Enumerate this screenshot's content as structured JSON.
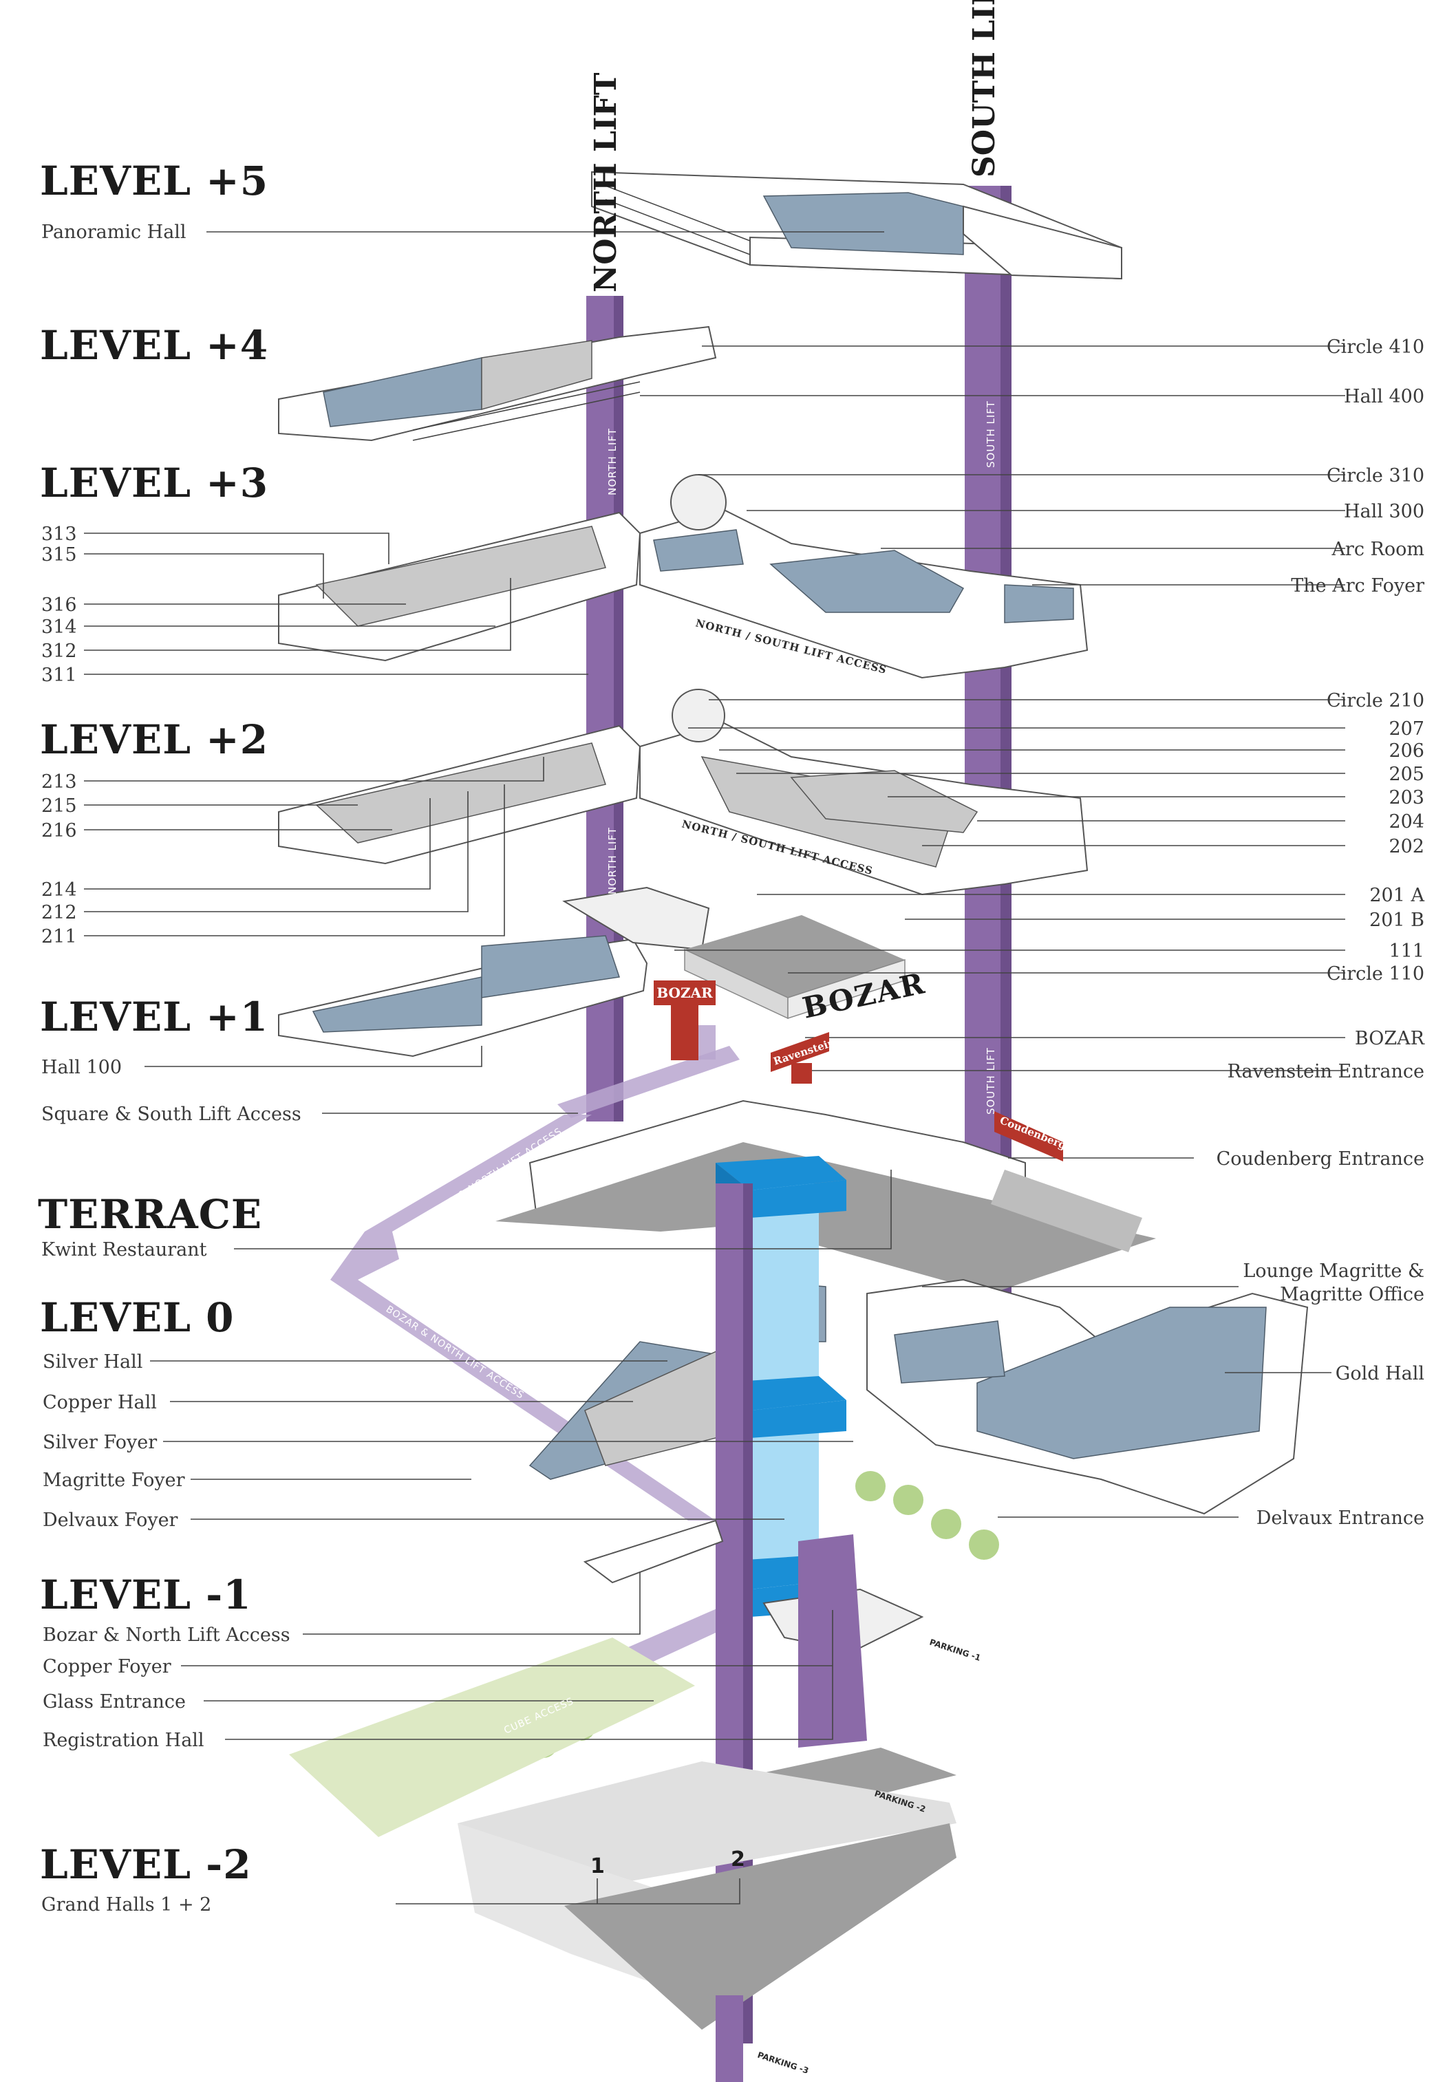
{
  "levels": {
    "l5": {
      "title": "LEVEL +5",
      "sub": "Panoramic Hall"
    },
    "l4": {
      "title": "LEVEL +4"
    },
    "l3": {
      "title": "LEVEL +3"
    },
    "l2": {
      "title": "LEVEL +2"
    },
    "l1": {
      "title": "LEVEL +1",
      "sub": "Hall 100"
    },
    "terrace": {
      "title": "TERRACE",
      "sub": "Kwint Restaurant"
    },
    "l0": {
      "title": "LEVEL 0"
    },
    "lm1": {
      "title": "LEVEL -1"
    },
    "lm2": {
      "title": "LEVEL -2",
      "sub": "Grand Halls 1 + 2"
    }
  },
  "left_labels": {
    "l3": [
      "313",
      "315",
      "316",
      "314",
      "312",
      "311"
    ],
    "l2": [
      "213",
      "215",
      "216",
      "214",
      "212",
      "211"
    ],
    "l1_square": "Square & South Lift Access",
    "l0": [
      "Silver Hall",
      "Copper Hall",
      "Silver Foyer",
      "Magritte Foyer",
      "Delvaux Foyer"
    ],
    "lm1": [
      "Bozar & North Lift Access",
      "Copper Foyer",
      "Glass Entrance",
      "Registration Hall"
    ]
  },
  "right_labels": {
    "l4": [
      "Circle 410",
      "Hall 400"
    ],
    "l3": [
      "Circle 310",
      "Hall 300",
      "Arc Room",
      "The Arc Foyer"
    ],
    "l2": [
      "Circle 210",
      "207",
      "206",
      "205",
      "203",
      "204",
      "202",
      "201 A",
      "201 B"
    ],
    "l1": [
      "111",
      "Circle 110",
      "BOZAR",
      "Ravenstein Entrance",
      "Coudenberg Entrance"
    ],
    "l0": [
      "Lounge Magritte &",
      "Magritte Office",
      "Gold Hall",
      "Delvaux Entrance"
    ]
  },
  "lifts": {
    "north": "NORTH LIFT",
    "south": "SOUTH LIFT",
    "north_small": "NORTH LIFT",
    "south_small": "SOUTH LIFT"
  },
  "access_text": {
    "ns_l3": "NORTH / SOUTH LIFT ACCESS",
    "ns_l2": "NORTH / SOUTH LIFT ACCESS",
    "bozar_north_1": "BOZAR & NORTH LIFT ACCESS",
    "bozar_north_2": "BOZAR & NORTH LIFT ACCESS",
    "cube": "CUBE ACCESS"
  },
  "signs": {
    "bozar_sign": "BOZAR",
    "bozar_roof": "BOZAR",
    "ravenstein": "Ravenstein",
    "coudenberg": "Coudenberg"
  },
  "parking": {
    "p1": "PARKING -1",
    "p2": "PARKING -2",
    "p3": "PARKING -3"
  },
  "grand_halls": {
    "one": "1",
    "two": "2"
  },
  "colors": {
    "lift": "#8b6aa8",
    "room_blue": "#8ea4b8",
    "glass_cube": "#1a8fd6",
    "sign_red": "#b5352a",
    "lawn": "#dde9c4"
  }
}
